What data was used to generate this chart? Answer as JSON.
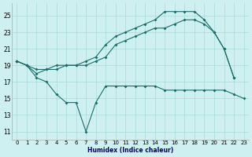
{
  "line_min_x": [
    0,
    1,
    2,
    3,
    4,
    5,
    6,
    7,
    8,
    9,
    10,
    11,
    12,
    13,
    14,
    15,
    16,
    17,
    18,
    19,
    20,
    21,
    22,
    23
  ],
  "line_min_y": [
    19.5,
    19.0,
    17.5,
    17.0,
    15.5,
    14.5,
    14.5,
    11.0,
    14.5,
    16.5,
    16.5,
    16.5,
    16.5,
    16.5,
    16.5,
    16.0,
    16.0,
    16.0,
    16.0,
    16.0,
    16.0,
    16.0,
    15.5,
    15.0
  ],
  "line_avg_x": [
    0,
    1,
    2,
    3,
    4,
    5,
    6,
    7,
    8,
    9,
    10,
    11,
    12,
    13,
    14,
    15,
    16,
    17,
    18,
    19,
    20,
    21,
    22
  ],
  "line_avg_y": [
    19.5,
    19.0,
    18.5,
    18.5,
    18.5,
    19.0,
    19.0,
    19.0,
    19.5,
    20.0,
    21.5,
    22.0,
    22.5,
    23.0,
    23.5,
    23.5,
    24.0,
    24.5,
    24.5,
    24.0,
    23.0,
    21.0,
    17.5
  ],
  "line_max_x": [
    0,
    1,
    2,
    3,
    4,
    5,
    6,
    7,
    8,
    9,
    10,
    11,
    12,
    13,
    14,
    15,
    16,
    17,
    18,
    19,
    20,
    21,
    22
  ],
  "line_max_y": [
    19.5,
    19.0,
    18.0,
    18.5,
    19.0,
    19.0,
    19.0,
    19.5,
    20.0,
    21.5,
    22.5,
    23.0,
    23.5,
    24.0,
    24.5,
    25.5,
    25.5,
    25.5,
    25.5,
    24.5,
    23.0,
    21.0,
    17.5
  ],
  "bg_color": "#cff0f0",
  "grid_color": "#aadada",
  "line_color": "#1a6e6a",
  "xlabel": "Humidex (Indice chaleur)",
  "xlim": [
    -0.5,
    23.5
  ],
  "ylim": [
    10.0,
    26.5
  ],
  "yticks": [
    11,
    13,
    15,
    17,
    19,
    21,
    23,
    25
  ],
  "xticks": [
    0,
    1,
    2,
    3,
    4,
    5,
    6,
    7,
    8,
    9,
    10,
    11,
    12,
    13,
    14,
    15,
    16,
    17,
    18,
    19,
    20,
    21,
    22,
    23
  ],
  "xlabel_color": "#00006a",
  "xlabel_fontsize": 5.5,
  "tick_fontsize": 5,
  "ytick_fontsize": 5.5
}
